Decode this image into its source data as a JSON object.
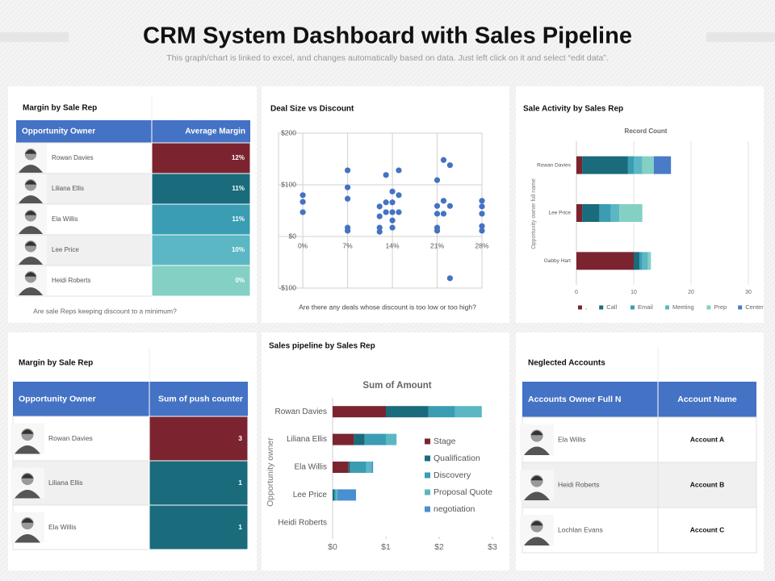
{
  "header": {
    "title": "CRM System Dashboard with Sales Pipeline",
    "subtitle": "This graph/chart is linked to excel, and changes automatically based on data. Just left click on it and select “edit data”."
  },
  "tables": [
    {
      "title": "Margin by Sale Rep",
      "columns": [
        "Opportunity Owner",
        "Average Margin"
      ],
      "rows": [
        [
          "Rowan Davies",
          "12%"
        ],
        [
          "Liliana Ellis",
          "11%"
        ],
        [
          "Ela Willis",
          "11%"
        ],
        [
          "Lee Price",
          "10%"
        ],
        [
          "Heidi Roberts",
          "0%"
        ]
      ],
      "value_colors": [
        "#7b2430",
        "#1a6b7c",
        "#3a9db3",
        "#5bb7c4",
        "#84d0c4"
      ],
      "caption": "Are sale Reps keeping discount to a minimum?"
    },
    {
      "title": "Margin by Sale Rep",
      "columns": [
        "Opportunity Owner",
        "Sum of push counter"
      ],
      "rows": [
        [
          "Rowan  Davies",
          3
        ],
        [
          "Liliana  Ellis",
          1
        ],
        [
          "Ela Willis",
          1
        ]
      ],
      "value_colors": [
        "#7b2430",
        "#1a6b7c",
        "#1a6b7c"
      ]
    },
    {
      "title": "Neglected Accounts",
      "columns": [
        "Accounts Owner Full N",
        "Account Name"
      ],
      "rows": [
        [
          "Ela Willis",
          "Account A"
        ],
        [
          "Heidi Roberts",
          "Account B"
        ],
        [
          "Lochlan Evans",
          "Account C"
        ]
      ]
    }
  ],
  "chart_data": [
    {
      "type": "scatter",
      "title": "Deal Size vs Discount",
      "caption": "Are there any deals whose discount is too low or too high?",
      "color": "#4472c4",
      "grid": true,
      "x": [
        0,
        0,
        0,
        7,
        7,
        7,
        7,
        7,
        13,
        15,
        14,
        15,
        13,
        14,
        12,
        13,
        14,
        15,
        12,
        14,
        12,
        12,
        14,
        22,
        23,
        21,
        22,
        21,
        23,
        21,
        22,
        21,
        21,
        23,
        28,
        28,
        28,
        28,
        28
      ],
      "values": [
        80,
        67,
        47,
        128,
        95,
        73,
        17,
        11,
        119,
        128,
        87,
        80,
        66,
        66,
        58,
        47,
        47,
        47,
        39,
        31,
        17,
        9,
        17,
        148,
        138,
        109,
        69,
        59,
        59,
        44,
        44,
        17,
        11,
        -81,
        69,
        58,
        44,
        20,
        11
      ],
      "xlim": [
        -3.8,
        28
      ],
      "xticks": [
        {
          "value": 0,
          "label": "0%"
        },
        {
          "value": 7,
          "label": "7%"
        },
        {
          "value": 14,
          "label": "14%"
        },
        {
          "value": 21,
          "label": "21%"
        },
        {
          "value": 28,
          "label": "28%"
        }
      ],
      "ylim": [
        -100,
        200
      ],
      "yticks": [
        {
          "value": -100,
          "label": "-$100"
        },
        {
          "value": 0,
          "label": "$0"
        },
        {
          "value": 100,
          "label": "$100"
        },
        {
          "value": 200,
          "label": "$200"
        }
      ]
    },
    {
      "type": "hbar-stacked",
      "title": "Sale Activity by Sales Rep",
      "subtitle": "Record Count",
      "ylabel": "Opportunity owner full name",
      "grid": true,
      "categories": [
        "Rowan Davies",
        "Lee Price",
        "Gabby Hart"
      ],
      "series": [
        {
          "name": ",",
          "color": "#7b2430",
          "values": [
            1,
            1,
            10
          ]
        },
        {
          "name": "Call",
          "color": "#1a6b7c",
          "values": [
            8,
            3,
            1
          ]
        },
        {
          "name": "Email",
          "color": "#3a9db3",
          "values": [
            1,
            2,
            0.5
          ]
        },
        {
          "name": "Meeting",
          "color": "#5bb7c4",
          "values": [
            1.5,
            1.5,
            1
          ]
        },
        {
          "name": "Prep",
          "color": "#84d0c4",
          "values": [
            2,
            4,
            0.5
          ]
        },
        {
          "name": "Center",
          "color": "#4a7bc8",
          "values": [
            3,
            0,
            0
          ]
        }
      ],
      "xlim": [
        0,
        30
      ],
      "xticks": [
        0,
        10,
        20,
        30
      ]
    },
    {
      "type": "hbar-stacked",
      "title": "Sales pipeline by Sales Rep",
      "subtitle": "Sum of Amount",
      "ylabel": "Opportunity owner",
      "grid": false,
      "categories": [
        "Rowan Davies",
        "Liliana Ellis",
        "Ela Willis",
        "Lee Price",
        "Heidi Roberts"
      ],
      "series": [
        {
          "name": "Stage",
          "color": "#7b2430",
          "values": [
            1,
            0.4,
            0.3,
            0,
            0
          ]
        },
        {
          "name": "Qualification",
          "color": "#1a6b7c",
          "values": [
            0.8,
            0.2,
            0.03,
            0.03,
            0
          ]
        },
        {
          "name": "Discovery",
          "color": "#3a9db3",
          "values": [
            0.5,
            0.4,
            0.3,
            0.03,
            0
          ]
        },
        {
          "name": "Proposal Quote",
          "color": "#5bb7c4",
          "values": [
            0.5,
            0.2,
            0.1,
            0.03,
            0
          ]
        },
        {
          "name": "negotiation",
          "color": "#4a90d0",
          "values": [
            0,
            0,
            0.03,
            0.35,
            0
          ]
        }
      ],
      "xlim": [
        0,
        3
      ],
      "xticks": [
        {
          "value": 0,
          "label": "$0"
        },
        {
          "value": 1,
          "label": "$1"
        },
        {
          "value": 2,
          "label": "$2"
        },
        {
          "value": 3,
          "label": "$3"
        }
      ]
    }
  ]
}
